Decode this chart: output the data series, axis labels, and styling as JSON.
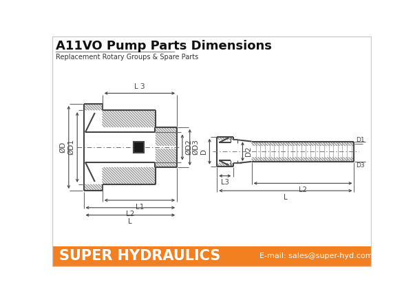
{
  "title": "A11VO Pump Parts Dimensions",
  "subtitle": "Replacement Rotary Groups & Spare Parts",
  "footer_text": "SUPER HYDRAULICS",
  "footer_email": "E-mail: sales@super-hyd.com",
  "footer_bg": "#F28020",
  "border_color": "#CCCCCC",
  "line_color": "#444444",
  "bg_color": "#FFFFFF",
  "title_color": "#111111",
  "subtitle_color": "#333333",
  "hatch_color": "#777777",
  "hatch_bg": "#EBEBEB"
}
